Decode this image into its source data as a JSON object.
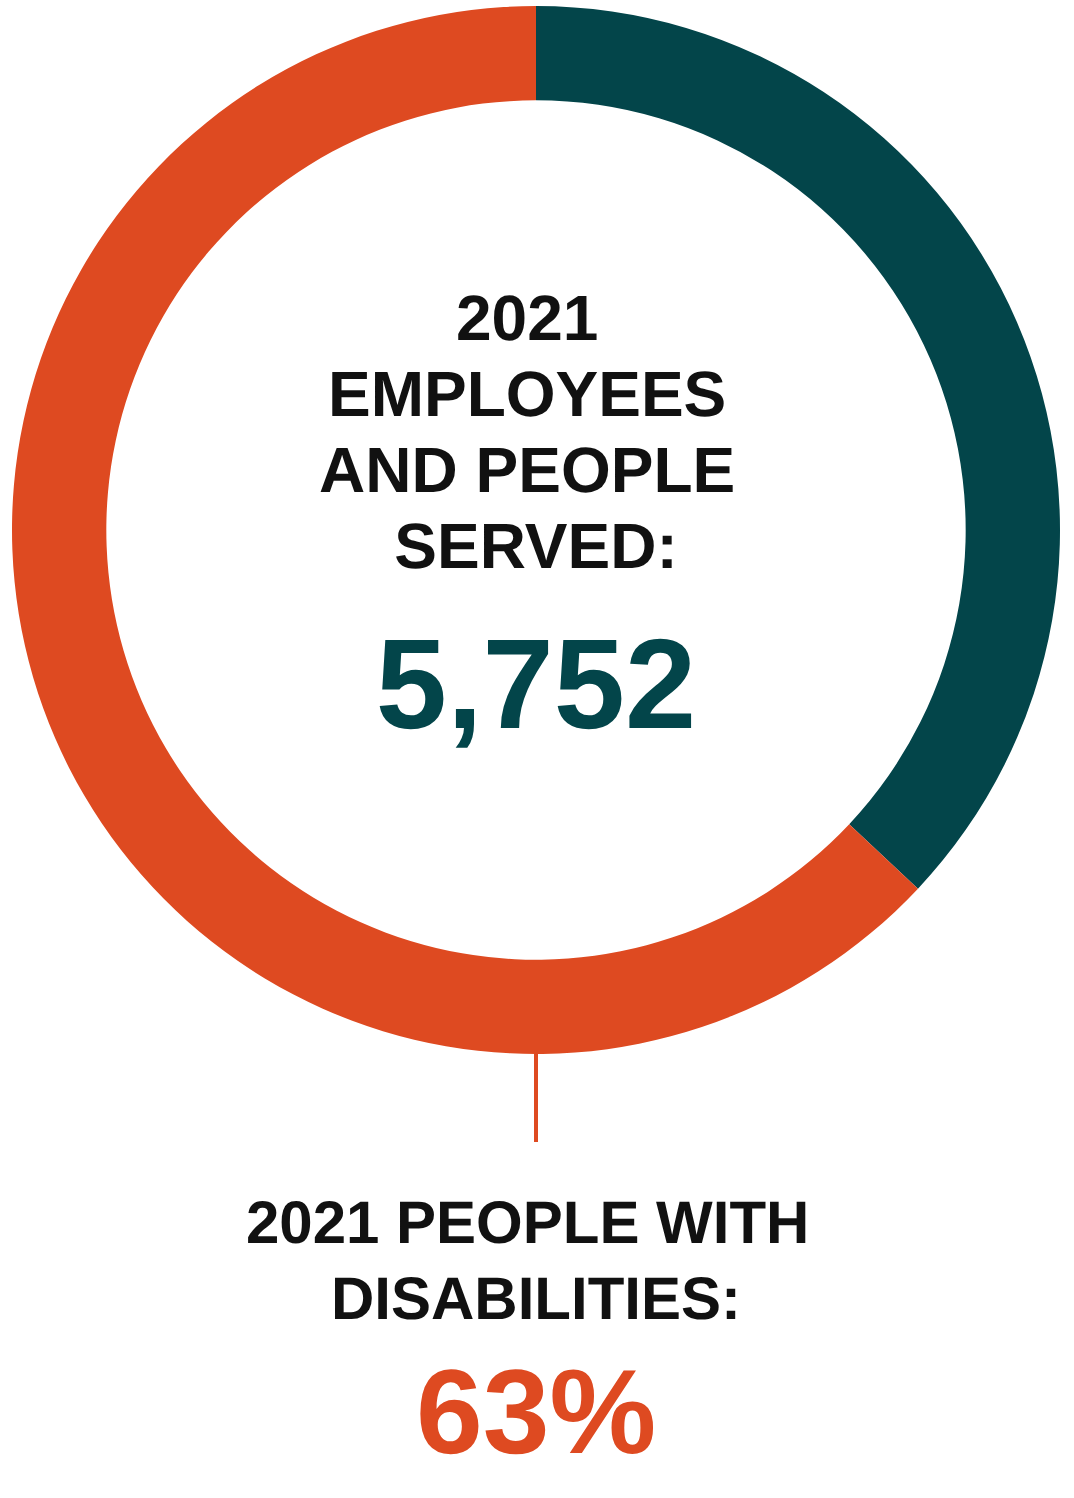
{
  "chart_data": {
    "type": "donut",
    "title": "2021 EMPLOYEES AND PEOPLE SERVED:",
    "subtitle": "5,752",
    "categories": [
      null,
      null
    ],
    "annotations": [
      "2021 PEOPLE WITH DISABILITIES:"
    ],
    "values": [
      37,
      63
    ],
    "colors": [
      "#03454a",
      "#de4a21"
    ],
    "value_labels": [
      null,
      "63%"
    ]
  }
}
